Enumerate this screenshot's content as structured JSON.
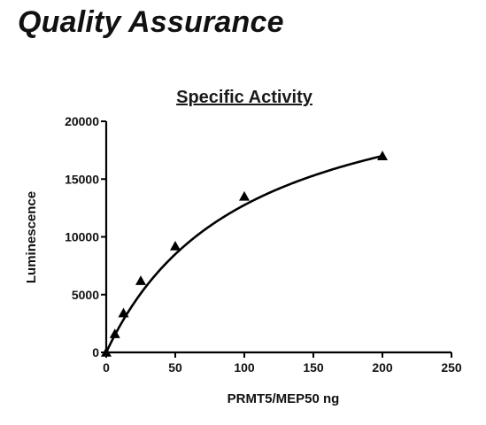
{
  "page": {
    "heading": "Quality Assurance"
  },
  "chart_data": {
    "type": "scatter",
    "title": "Specific Activity",
    "xlabel": "PRMT5/MEP50 ng",
    "ylabel": "Luminescence",
    "xlim": [
      0,
      250
    ],
    "ylim": [
      0,
      20000
    ],
    "xticks": [
      0,
      50,
      100,
      150,
      200,
      250
    ],
    "yticks": [
      0,
      5000,
      10000,
      15000,
      20000
    ],
    "grid": false,
    "marker": "triangle",
    "series": [
      {
        "x": [
          0,
          6.25,
          12.5,
          25,
          50,
          100,
          200
        ],
        "y": [
          0,
          1600,
          3400,
          6200,
          9200,
          13500,
          17000
        ]
      }
    ],
    "fit": {
      "type": "hyperbolic",
      "bmax": 25500,
      "kd": 100
    }
  }
}
